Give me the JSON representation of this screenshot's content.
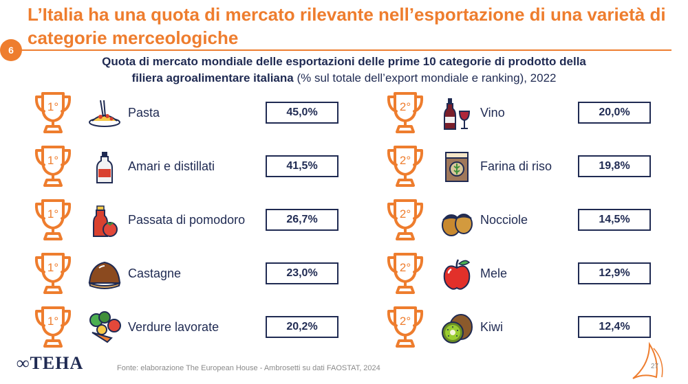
{
  "header": {
    "title": "L’Italia ha una quota di mercato rilevante nell’esportazione di una varietà di categorie merceologiche",
    "badge": "6",
    "subtitle_bold_line1": "Quota di mercato mondiale delle esportazioni delle prime 10 categorie di prodotto della",
    "subtitle_bold_line2": "filiera agroalimentare italiana",
    "subtitle_rest": " (% sul totale dell’export mondiale e ranking), 2022"
  },
  "left_items": [
    {
      "rank": "1°",
      "label": "Pasta",
      "value": "45,0%",
      "icon": "pasta-icon"
    },
    {
      "rank": "1°",
      "label": "Amari e distillati",
      "value": "41,5%",
      "icon": "liquor-bottle-icon"
    },
    {
      "rank": "1°",
      "label": "Passata di pomodoro",
      "value": "26,7%",
      "icon": "tomato-sauce-icon"
    },
    {
      "rank": "1°",
      "label": "Castagne",
      "value": "23,0%",
      "icon": "chestnut-icon"
    },
    {
      "rank": "1°",
      "label": "Verdure lavorate",
      "value": "20,2%",
      "icon": "vegetables-icon"
    }
  ],
  "right_items": [
    {
      "rank": "2°",
      "label": "Vino",
      "value": "20,0%",
      "icon": "wine-icon"
    },
    {
      "rank": "2°",
      "label": "Farina di riso",
      "value": "19,8%",
      "icon": "rice-flour-sack-icon"
    },
    {
      "rank": "2°",
      "label": "Nocciole",
      "value": "14,5%",
      "icon": "hazelnut-icon"
    },
    {
      "rank": "2°",
      "label": "Mele",
      "value": "12,9%",
      "icon": "apple-icon"
    },
    {
      "rank": "2°",
      "label": "Kiwi",
      "value": "12,4%",
      "icon": "kiwi-icon"
    }
  ],
  "footer": {
    "logo": "TEHA",
    "source": "Fonte: elaborazione The European House - Ambrosetti su dati FAOSTAT, 2024",
    "page_number": "27"
  },
  "colors": {
    "accent": "#ee7d2e",
    "navy": "#1f2a52"
  }
}
